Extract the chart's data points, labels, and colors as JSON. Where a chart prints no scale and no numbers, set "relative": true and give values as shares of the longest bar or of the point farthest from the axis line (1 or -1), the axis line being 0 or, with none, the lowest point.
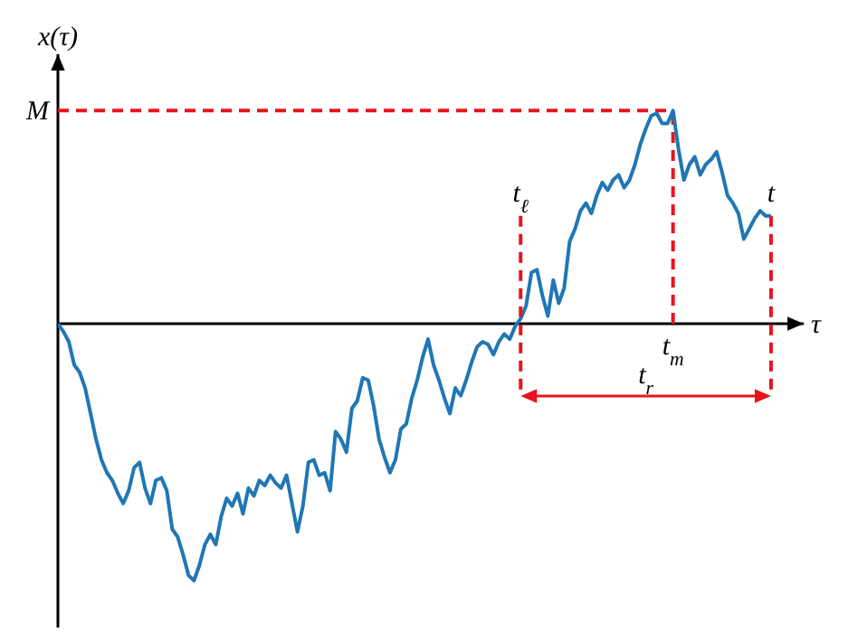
{
  "chart_data": {
    "type": "line",
    "xlabel": "τ",
    "ylabel": "x(τ)",
    "relative": true,
    "categories": [
      null,
      null,
      null,
      null,
      null,
      null,
      null,
      null,
      null,
      null,
      null,
      null,
      null,
      null,
      null,
      null,
      null,
      null,
      null,
      null,
      null,
      null,
      null,
      null,
      null,
      null,
      null,
      null,
      null,
      null,
      null,
      null,
      null,
      null,
      null,
      null,
      null,
      null,
      null,
      null,
      null,
      null,
      null,
      null,
      null,
      null,
      null,
      null,
      null,
      null,
      null,
      null,
      null,
      null,
      null,
      null,
      null,
      null,
      null,
      null,
      null,
      null,
      null,
      null,
      null,
      null,
      null,
      null,
      null,
      null,
      null,
      null,
      null,
      null,
      null,
      null,
      null,
      null,
      null,
      null,
      null,
      null,
      null,
      null,
      null,
      null,
      null,
      null,
      null,
      null,
      null,
      null,
      null,
      null,
      null,
      null,
      null,
      null,
      null,
      null,
      null,
      null,
      null,
      null,
      null,
      null,
      null,
      null,
      null,
      null,
      null,
      null,
      null,
      null,
      null,
      null,
      null,
      null,
      null,
      null,
      null,
      null,
      null,
      null,
      null,
      null,
      null,
      null,
      null,
      null,
      null,
      null
    ],
    "series": [
      {
        "color": "#1f77b4",
        "values": [
          0,
          -0.03,
          -0.07,
          -0.16,
          -0.19,
          -0.25,
          -0.35,
          -0.45,
          -0.53,
          -0.58,
          -0.61,
          -0.66,
          -0.7,
          -0.65,
          -0.56,
          -0.54,
          -0.64,
          -0.7,
          -0.61,
          -0.6,
          -0.65,
          -0.8,
          -0.83,
          -0.9,
          -0.98,
          -1,
          -0.94,
          -0.86,
          -0.82,
          -0.86,
          -0.75,
          -0.68,
          -0.71,
          -0.66,
          -0.74,
          -0.64,
          -0.67,
          -0.61,
          -0.63,
          -0.59,
          -0.62,
          -0.64,
          -0.59,
          -0.7,
          -0.81,
          -0.71,
          -0.54,
          -0.53,
          -0.59,
          -0.58,
          -0.65,
          -0.42,
          -0.45,
          -0.5,
          -0.33,
          -0.3,
          -0.21,
          -0.22,
          -0.32,
          -0.45,
          -0.52,
          -0.58,
          -0.53,
          -0.41,
          -0.39,
          -0.29,
          -0.22,
          -0.13,
          -0.06,
          -0.16,
          -0.22,
          -0.29,
          -0.35,
          -0.25,
          -0.28,
          -0.22,
          -0.15,
          -0.09,
          -0.07,
          -0.08,
          -0.12,
          -0.07,
          -0.04,
          -0.06,
          -0.01,
          0.02,
          0.07,
          0.2,
          0.21,
          0.11,
          0.03,
          0.17,
          0.08,
          0.14,
          0.32,
          0.37,
          0.44,
          0.47,
          0.43,
          0.5,
          0.55,
          0.52,
          0.56,
          0.58,
          0.53,
          0.56,
          0.62,
          0.7,
          0.76,
          0.81,
          0.82,
          0.78,
          0.78,
          0.83,
          0.68,
          0.56,
          0.62,
          0.65,
          0.58,
          0.62,
          0.64,
          0.67,
          0.59,
          0.5,
          0.47,
          0.43,
          0.33,
          0.37,
          0.41,
          0.44,
          0.42,
          0.42
        ]
      }
    ],
    "ref_lines": [
      {
        "axis": "y",
        "value": 0.83,
        "label": "M",
        "color": "#e8141c",
        "line_style": "dashed"
      }
    ],
    "annotations": [
      "t$_{ℓ}$",
      "t$_{m}$",
      "t",
      "t$_{r}$"
    ]
  }
}
